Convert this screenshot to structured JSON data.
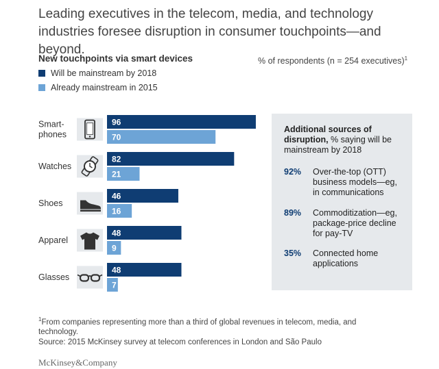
{
  "headline": "Leading executives in the telecom, media, and technology industries foresee disruption in consumer touchpoints—and beyond.",
  "unit_note": "% of respondents (n = 254 executives)",
  "unit_note_mark": "1",
  "colors": {
    "dark": "#0f3d73",
    "light": "#6da4d6",
    "sidebar_bg": "#e6e9ec"
  },
  "chart_data": {
    "type": "bar",
    "orientation": "horizontal",
    "title": "New touchpoints via smart devices",
    "categories": [
      "Smart-phones",
      "Watches",
      "Shoes",
      "Apparel",
      "Glasses"
    ],
    "category_lines": [
      [
        "Smart-",
        "phones"
      ],
      [
        "Watches"
      ],
      [
        "Shoes"
      ],
      [
        "Apparel"
      ],
      [
        "Glasses"
      ]
    ],
    "icons": [
      "smartphone-icon",
      "watch-icon",
      "shoe-icon",
      "shirt-icon",
      "glasses-icon"
    ],
    "series": [
      {
        "name": "Will be mainstream by 2018",
        "values": [
          96,
          82,
          46,
          48,
          48
        ]
      },
      {
        "name": "Already mainstream in 2015",
        "values": [
          70,
          21,
          16,
          9,
          7
        ]
      }
    ],
    "xlim": [
      0,
      100
    ]
  },
  "sidebar": {
    "title_bold": "Additional sources of disruption,",
    "title_rest": " % saying will be mainstream by 2018",
    "items": [
      {
        "pct": "92%",
        "text": "Over-the-top (OTT) business models—eg, in communications"
      },
      {
        "pct": "89%",
        "text": "Commoditization—eg, package-price decline for pay-TV"
      },
      {
        "pct": "35%",
        "text": "Connected home applications"
      }
    ]
  },
  "footnote_mark": "1",
  "footnote": "From companies representing more than a third of global revenues in telecom, media, and technology.",
  "source": "Source: 2015 McKinsey survey at telecom conferences in London and São Paulo",
  "brand": "McKinsey&Company"
}
